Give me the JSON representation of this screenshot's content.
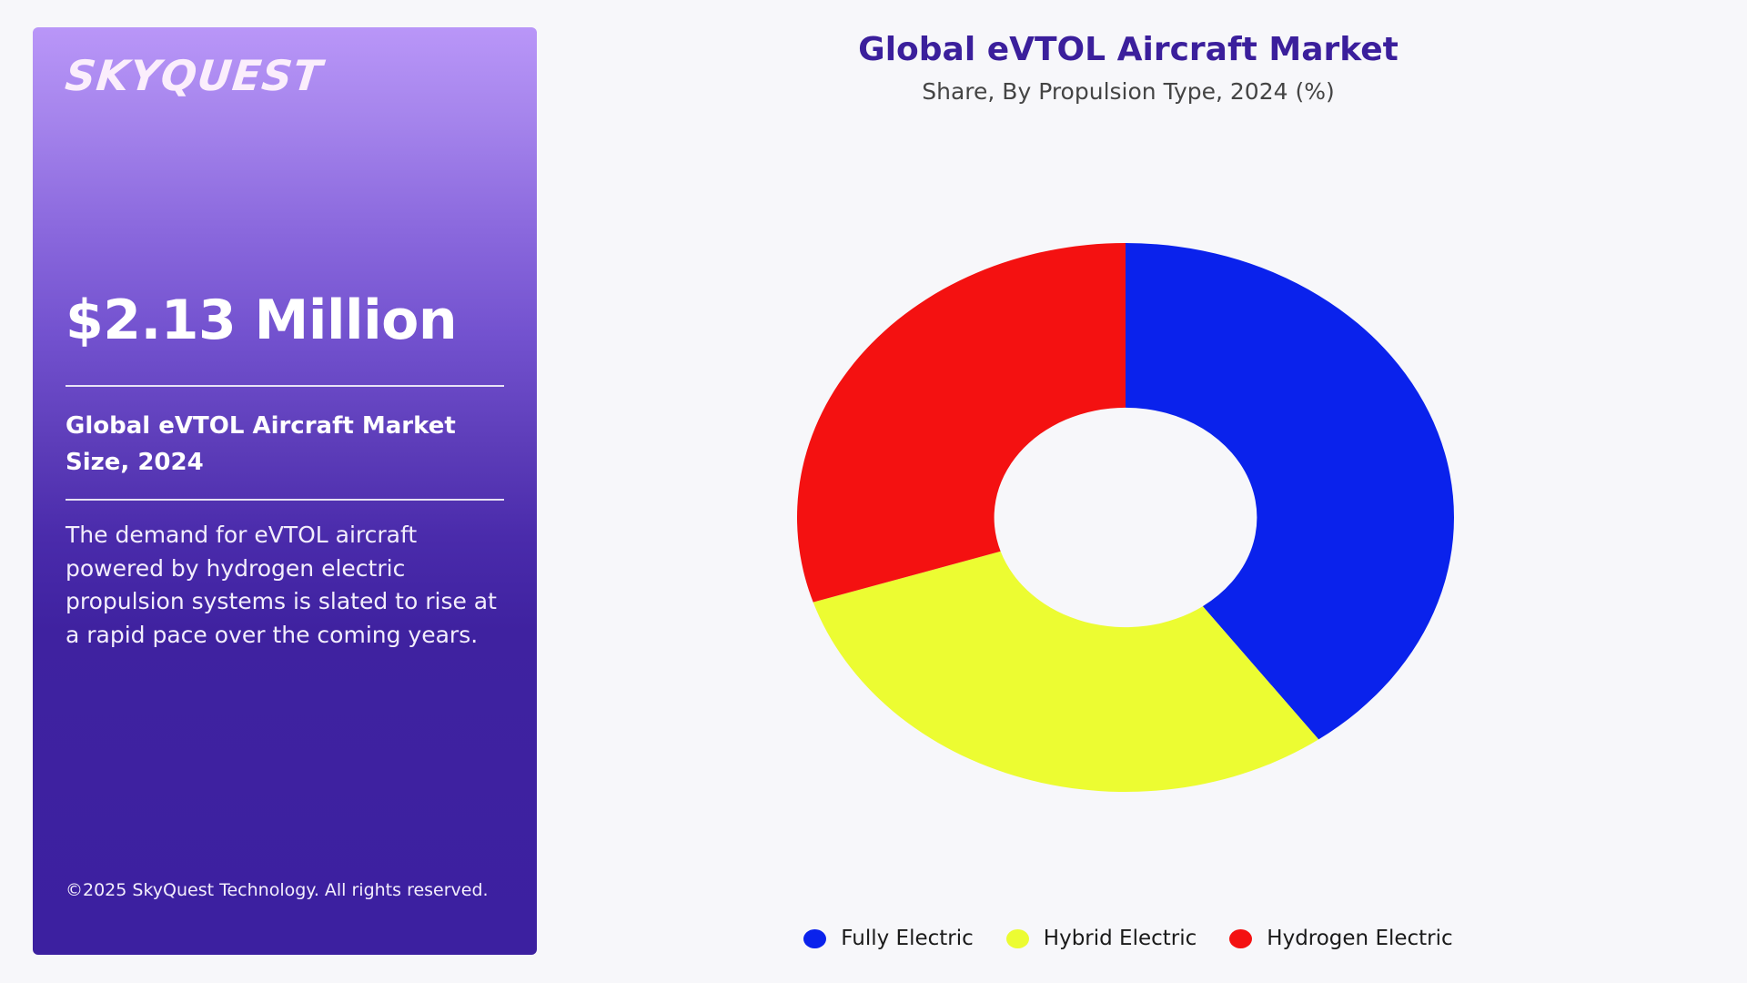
{
  "panel": {
    "logo": "SKYQUEST",
    "big_value": "$2.13 Million",
    "metric_label": "Global eVTOL Aircraft Market Size, 2024",
    "description": "The demand for eVTOL aircraft powered by hydrogen electric propulsion systems is slated to rise at a rapid pace over the coming years.",
    "copyright": "©2025 SkyQuest Technology. All rights reserved."
  },
  "header": {
    "title": "Global eVTOL Aircraft Market",
    "subtitle": "Share, By Propulsion Type, 2024 (%)"
  },
  "legend": {
    "items": [
      {
        "label": "Fully Electric",
        "color": "#0a22ec"
      },
      {
        "label": "Hybrid Electric",
        "color": "#ecfc32"
      },
      {
        "label": "Hydrogen Electric",
        "color": "#f41111"
      }
    ]
  },
  "colors": {
    "page_background": "#f7f7fa",
    "title": "#3b1f9c",
    "panel_top": "#b996f8",
    "panel_bottom": "#3c20a0"
  },
  "chart_data": {
    "type": "pie",
    "variant": "donut",
    "title": "Global eVTOL Aircraft Market",
    "subtitle": "Share, By Propulsion Type, 2024 (%)",
    "categories": [
      "Fully Electric",
      "Hybrid Electric",
      "Hydrogen Electric"
    ],
    "values": [
      40,
      30,
      30
    ],
    "unit": "%",
    "colors": [
      "#0a22ec",
      "#ecfc32",
      "#f41111"
    ],
    "start_angle_deg": 0,
    "direction": "clockwise",
    "inner_radius_ratio": 0.4,
    "data_labels": false,
    "legend_position": "bottom"
  }
}
